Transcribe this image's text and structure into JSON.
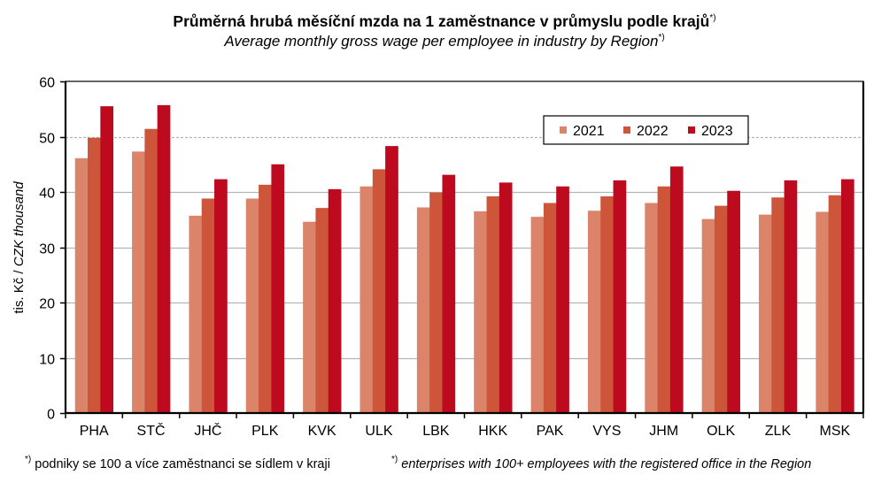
{
  "chart_data": {
    "type": "bar",
    "title": "Průměrná hrubá měsíční mzda na 1 zaměstnance v průmyslu podle krajů",
    "title_marker": "*)",
    "subtitle": "Average monthly gross wage per employee in industry by Region",
    "subtitle_marker": "*)",
    "ylabel_cz": "tis. Kč / ",
    "ylabel_en": "CZK thousand",
    "xlabel": "",
    "ylim": [
      0,
      60
    ],
    "yticks": [
      0,
      10,
      20,
      30,
      40,
      50,
      60
    ],
    "grid": true,
    "legend_position": "top-right",
    "categories": [
      "PHA",
      "STČ",
      "JHČ",
      "PLK",
      "KVK",
      "ULK",
      "LBK",
      "HKK",
      "PAK",
      "VYS",
      "JHM",
      "OLK",
      "ZLK",
      "MSK"
    ],
    "series": [
      {
        "name": "2021",
        "color": "#DB846A",
        "values": [
          46.1,
          47.3,
          35.7,
          38.8,
          34.6,
          41.0,
          37.2,
          36.5,
          35.5,
          36.6,
          38.0,
          35.1,
          35.9,
          36.4
        ]
      },
      {
        "name": "2022",
        "color": "#CC553A",
        "values": [
          49.8,
          51.4,
          38.8,
          41.3,
          37.1,
          44.1,
          39.9,
          39.2,
          38.0,
          39.2,
          41.0,
          37.5,
          39.0,
          39.4
        ]
      },
      {
        "name": "2023",
        "color": "#BE0A1E",
        "values": [
          55.5,
          55.7,
          42.3,
          45.0,
          40.5,
          48.3,
          43.1,
          41.7,
          41.0,
          42.1,
          44.6,
          40.2,
          42.1,
          42.3
        ]
      }
    ]
  },
  "footnotes": {
    "marker": "*)",
    "cz": " podniky se 100 a více zaměstnanci se sídlem v kraji",
    "en": " enterprises with 100+ employees with the registered office in the Region"
  }
}
